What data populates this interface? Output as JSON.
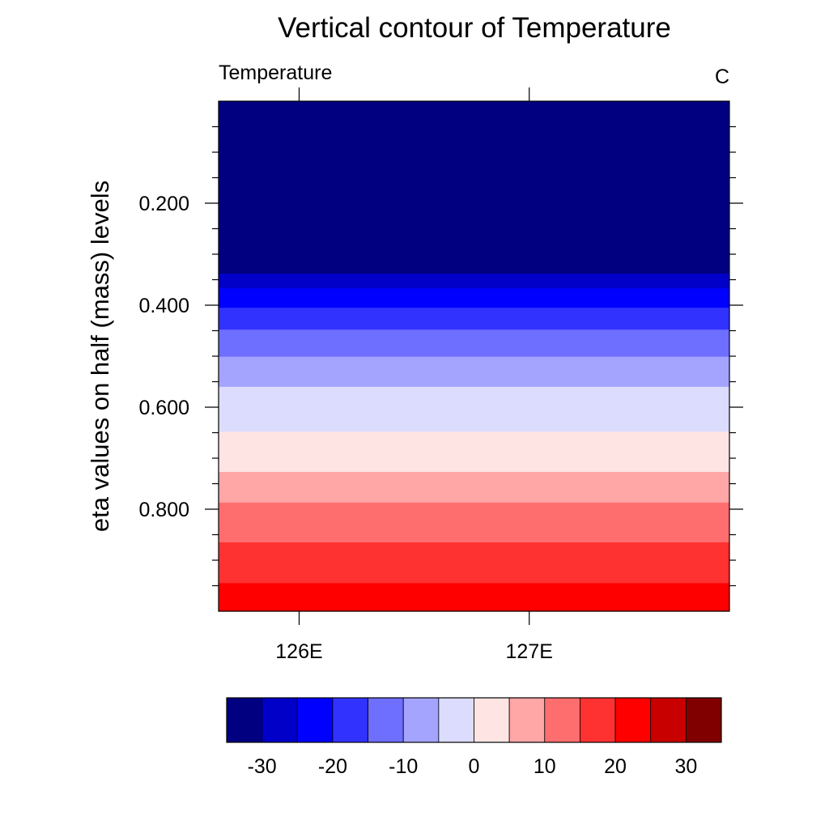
{
  "chart_data": {
    "type": "heatmap",
    "title": "Vertical contour of Temperature",
    "left_string": "Temperature",
    "right_string": "C",
    "xlabel": "",
    "ylabel": "eta values on half (mass) levels",
    "x_ticks": [
      {
        "value": 126,
        "label": "126E"
      },
      {
        "value": 127,
        "label": "127E"
      }
    ],
    "xlim": [
      125.65,
      127.87
    ],
    "y_ticks": [
      {
        "value": 0.2,
        "label": "0.200"
      },
      {
        "value": 0.4,
        "label": "0.400"
      },
      {
        "value": 0.6,
        "label": "0.600"
      },
      {
        "value": 0.8,
        "label": "0.800"
      }
    ],
    "ylim": [
      0.0,
      1.0
    ],
    "bands": [
      {
        "top": 0.0,
        "bottom": 0.338,
        "color": "#000080"
      },
      {
        "top": 0.338,
        "bottom": 0.367,
        "color": "#0000c8"
      },
      {
        "top": 0.367,
        "bottom": 0.405,
        "color": "#0000ff"
      },
      {
        "top": 0.405,
        "bottom": 0.448,
        "color": "#3232ff"
      },
      {
        "top": 0.448,
        "bottom": 0.501,
        "color": "#6e6eff"
      },
      {
        "top": 0.501,
        "bottom": 0.56,
        "color": "#a4a4ff"
      },
      {
        "top": 0.56,
        "bottom": 0.648,
        "color": "#dcdcff"
      },
      {
        "top": 0.648,
        "bottom": 0.727,
        "color": "#ffe4e4"
      },
      {
        "top": 0.727,
        "bottom": 0.787,
        "color": "#ffa6a6"
      },
      {
        "top": 0.787,
        "bottom": 0.865,
        "color": "#ff6e6e"
      },
      {
        "top": 0.865,
        "bottom": 0.945,
        "color": "#ff3232"
      },
      {
        "top": 0.945,
        "bottom": 1.0,
        "color": "#ff0000"
      }
    ],
    "colorbar": {
      "colors": [
        "#000080",
        "#0000c8",
        "#0000ff",
        "#3232ff",
        "#6e6eff",
        "#a4a4ff",
        "#dcdcff",
        "#ffe4e4",
        "#ffa6a6",
        "#ff6e6e",
        "#ff3232",
        "#ff0000",
        "#c80000",
        "#800000"
      ],
      "ticks": [
        {
          "value": -30,
          "label": "-30"
        },
        {
          "value": -20,
          "label": "-20"
        },
        {
          "value": -10,
          "label": "-10"
        },
        {
          "value": 0,
          "label": "0"
        },
        {
          "value": 10,
          "label": "10"
        },
        {
          "value": 20,
          "label": "20"
        },
        {
          "value": 30,
          "label": "30"
        }
      ],
      "range": [
        -35,
        35
      ]
    }
  }
}
